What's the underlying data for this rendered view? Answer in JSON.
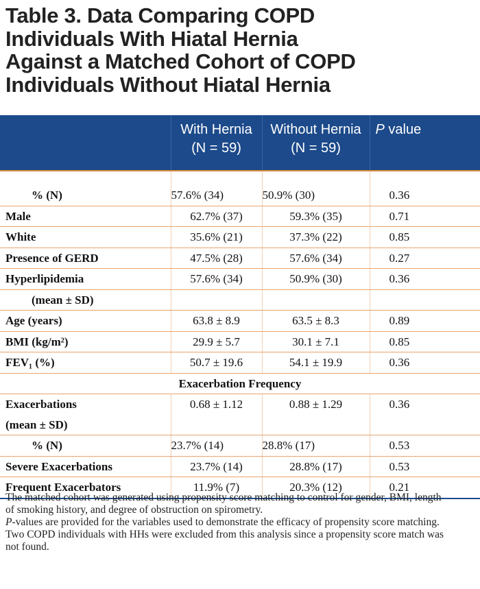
{
  "title": "Table 3. Data Comparing COPD\nIndividuals With Hiatal Hernia\nAgainst a Matched Cohort of COPD\nIndividuals Without Hiatal Hernia",
  "header": {
    "col1_line1": "With Hernia",
    "col1_line2": "(N = 59)",
    "col2_line1": "Without Hernia",
    "col2_line2": "(N = 59)",
    "col3_italic": "P",
    "col3_rest": " value"
  },
  "rows": [
    {
      "label": "% (N)",
      "with": "57.6% (34)",
      "without": "50.9% (30)",
      "p": "0.36"
    },
    {
      "label": "Male",
      "with": "62.7% (37)",
      "without": "59.3% (35)",
      "p": "0.71"
    },
    {
      "label": "White",
      "with": "35.6% (21)",
      "without": "37.3% (22)",
      "p": "0.85"
    },
    {
      "label": "Presence of GERD",
      "with": "47.5% (28)",
      "without": "57.6% (34)",
      "p": "0.27"
    },
    {
      "label": "Hyperlipidemia",
      "with": "57.6% (34)",
      "without": "50.9% (30)",
      "p": "0.36"
    },
    {
      "label": "(mean ± SD)"
    },
    {
      "label": "Age (years)",
      "with": "63.8 ± 8.9",
      "without": "63.5 ± 8.3",
      "p": "0.89"
    },
    {
      "label": "BMI (kg/m²)",
      "with": "29.9 ± 5.7",
      "without": "30.1 ± 7.1",
      "p": "0.85"
    },
    {
      "label": "FEV₁ (%)",
      "with": "50.7 ± 19.6",
      "without": "54.1 ± 19.9",
      "p": "0.36"
    },
    {
      "label": "Exacerbation Frequency"
    },
    {
      "label": "Exacerbations",
      "with": "0.68 ± 1.12",
      "without": "0.88 ± 1.29",
      "p": "0.36"
    },
    {
      "label": "(mean ± SD)"
    },
    {
      "label": "% (N)",
      "with": "23.7% (14)",
      "without": "28.8% (17)",
      "p": "0.53"
    },
    {
      "label": "Severe Exacerbations",
      "with": "23.7% (14)",
      "without": "28.8% (17)",
      "p": "0.53"
    },
    {
      "label": "Frequent Exacerbators",
      "with": "11.9% (7)",
      "without": "20.3% (12)",
      "p": "0.21"
    }
  ],
  "notes": {
    "n1": "The matched cohort was generated using propensity score matching to control for gender, BMI, length of smoking history, and degree of obstruction on spirometry.",
    "n2_italic": "P",
    "n2_rest": "-values are provided for the variables used to demonstrate the efficacy of propensity score matching.",
    "n3": "Two COPD individuals with HHs were excluded from this analysis since a propensity score match was not found."
  }
}
